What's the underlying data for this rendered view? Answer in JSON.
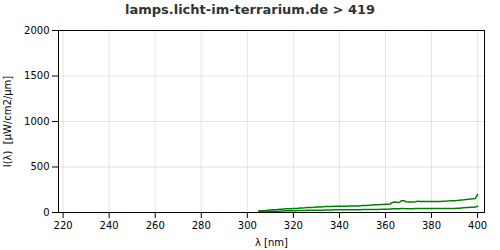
{
  "chart_data": {
    "type": "line",
    "title": "lamps.licht-im-terrarium.de > 419",
    "xlabel": "λ [nm]",
    "ylabel": "I(λ)  [μW/cm2/μm]",
    "x": [
      305,
      306,
      307,
      308,
      309,
      310,
      311,
      312,
      313,
      314,
      315,
      316,
      317,
      318,
      319,
      320,
      321,
      322,
      323,
      324,
      325,
      326,
      327,
      328,
      329,
      330,
      331,
      332,
      333,
      334,
      335,
      336,
      337,
      338,
      339,
      340,
      341,
      342,
      343,
      344,
      345,
      346,
      347,
      348,
      349,
      350,
      351,
      352,
      353,
      354,
      355,
      356,
      357,
      358,
      359,
      360,
      361,
      362,
      363,
      364,
      365,
      366,
      367,
      368,
      369,
      370,
      371,
      372,
      373,
      374,
      375,
      376,
      377,
      378,
      379,
      380,
      381,
      382,
      383,
      384,
      385,
      386,
      387,
      388,
      389,
      390,
      391,
      392,
      393,
      394,
      395,
      396,
      397,
      398,
      399,
      400
    ],
    "series": [
      {
        "color": "#008000",
        "values": [
          20,
          20,
          20,
          22,
          25,
          28,
          30,
          30,
          32,
          35,
          35,
          38,
          40,
          40,
          42,
          45,
          45,
          47,
          50,
          50,
          52,
          55,
          55,
          55,
          57,
          60,
          60,
          60,
          62,
          65,
          65,
          65,
          67,
          70,
          70,
          70,
          70,
          70,
          70,
          72,
          72,
          72,
          72,
          72,
          75,
          78,
          78,
          78,
          80,
          82,
          85,
          85,
          85,
          87,
          88,
          90,
          90,
          93,
          110,
          115,
          112,
          110,
          130,
          130,
          118,
          115,
          115,
          115,
          118,
          125,
          122,
          120,
          120,
          120,
          120,
          120,
          120,
          120,
          120,
          122,
          125,
          125,
          127,
          128,
          130,
          130,
          132,
          135,
          138,
          140,
          143,
          145,
          148,
          150,
          153,
          200
        ]
      },
      {
        "color": "#008000",
        "values": [
          8,
          8,
          9,
          10,
          11,
          12,
          13,
          14,
          14,
          15,
          16,
          17,
          18,
          18,
          19,
          20,
          20,
          21,
          22,
          22,
          23,
          24,
          24,
          24,
          25,
          25,
          25,
          25,
          26,
          27,
          27,
          27,
          28,
          29,
          29,
          29,
          29,
          29,
          29,
          30,
          30,
          30,
          30,
          30,
          31,
          32,
          32,
          32,
          33,
          33,
          34,
          34,
          34,
          35,
          35,
          36,
          36,
          38,
          40,
          42,
          41,
          40,
          45,
          45,
          42,
          42,
          42,
          42,
          43,
          44,
          43,
          43,
          43,
          43,
          43,
          43,
          43,
          43,
          43,
          44,
          44,
          44,
          45,
          45,
          45,
          45,
          47,
          48,
          50,
          52,
          54,
          55,
          57,
          58,
          60,
          68
        ]
      }
    ],
    "xlim": [
      218,
      403
    ],
    "ylim": [
      0,
      2000
    ],
    "xticks": [
      220,
      240,
      260,
      280,
      300,
      320,
      340,
      360,
      380,
      400
    ],
    "yticks": [
      0,
      500,
      1000,
      1500,
      2000
    ],
    "grid": true
  }
}
